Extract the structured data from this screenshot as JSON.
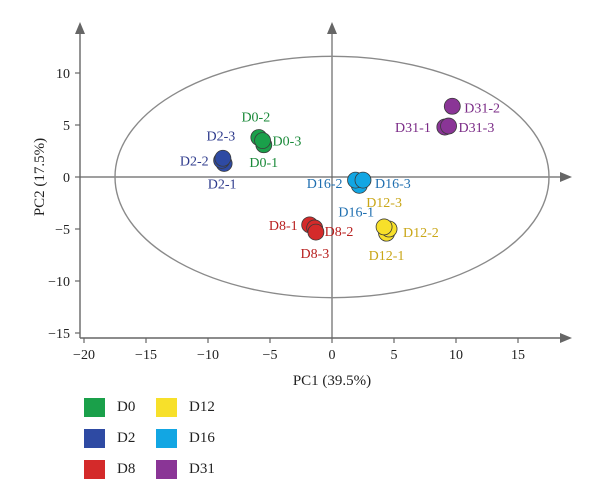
{
  "chart_data": {
    "type": "scatter",
    "xlabel": "PC1 (39.5%)",
    "ylabel": "PC2 (17.5%)",
    "xlim": [
      -20,
      20
    ],
    "ylim": [
      -15,
      15
    ],
    "xticks": [
      -20,
      -15,
      -10,
      -5,
      0,
      5,
      10,
      15
    ],
    "yticks": [
      -15,
      -10,
      -5,
      0,
      5,
      10
    ],
    "confidence_ellipse": {
      "center": [
        0,
        0
      ],
      "x_radius": 17.5,
      "y_radius": 11.6
    },
    "legend_position": "bottom-left",
    "series": [
      {
        "name": "D0",
        "color": "#1aa04a",
        "points": [
          {
            "label": "D0-1",
            "x": -5.5,
            "y": 3.1
          },
          {
            "label": "D0-2",
            "x": -5.9,
            "y": 3.8
          },
          {
            "label": "D0-3",
            "x": -5.6,
            "y": 3.5
          }
        ]
      },
      {
        "name": "D2",
        "color": "#2e4aa3",
        "points": [
          {
            "label": "D2-1",
            "x": -8.7,
            "y": 1.3
          },
          {
            "label": "D2-2",
            "x": -8.9,
            "y": 1.6
          },
          {
            "label": "D2-3",
            "x": -8.8,
            "y": 1.8
          }
        ]
      },
      {
        "name": "D8",
        "color": "#d42a2a",
        "points": [
          {
            "label": "D8-1",
            "x": -1.8,
            "y": -4.6
          },
          {
            "label": "D8-2",
            "x": -1.4,
            "y": -4.9
          },
          {
            "label": "D8-3",
            "x": -1.3,
            "y": -5.3
          }
        ]
      },
      {
        "name": "D12",
        "color": "#f7e02a",
        "points": [
          {
            "label": "D12-1",
            "x": 4.4,
            "y": -5.4
          },
          {
            "label": "D12-2",
            "x": 4.6,
            "y": -5.0
          },
          {
            "label": "D12-3",
            "x": 4.2,
            "y": -4.8
          }
        ]
      },
      {
        "name": "D16",
        "color": "#12a6e3",
        "points": [
          {
            "label": "D16-1",
            "x": 2.2,
            "y": -0.8
          },
          {
            "label": "D16-2",
            "x": 1.9,
            "y": -0.3
          },
          {
            "label": "D16-3",
            "x": 2.5,
            "y": -0.3
          }
        ]
      },
      {
        "name": "D31",
        "color": "#8a3596",
        "points": [
          {
            "label": "D31-1",
            "x": 9.1,
            "y": 4.8
          },
          {
            "label": "D31-2",
            "x": 9.7,
            "y": 6.8
          },
          {
            "label": "D31-3",
            "x": 9.4,
            "y": 4.9
          }
        ]
      }
    ],
    "label_colors": {
      "D0": "#1b8a3a",
      "D2": "#2d3a8c",
      "D8": "#b8201f",
      "D12": "#c9a617",
      "D16": "#1f6fb0",
      "D31": "#7a2a86"
    }
  }
}
